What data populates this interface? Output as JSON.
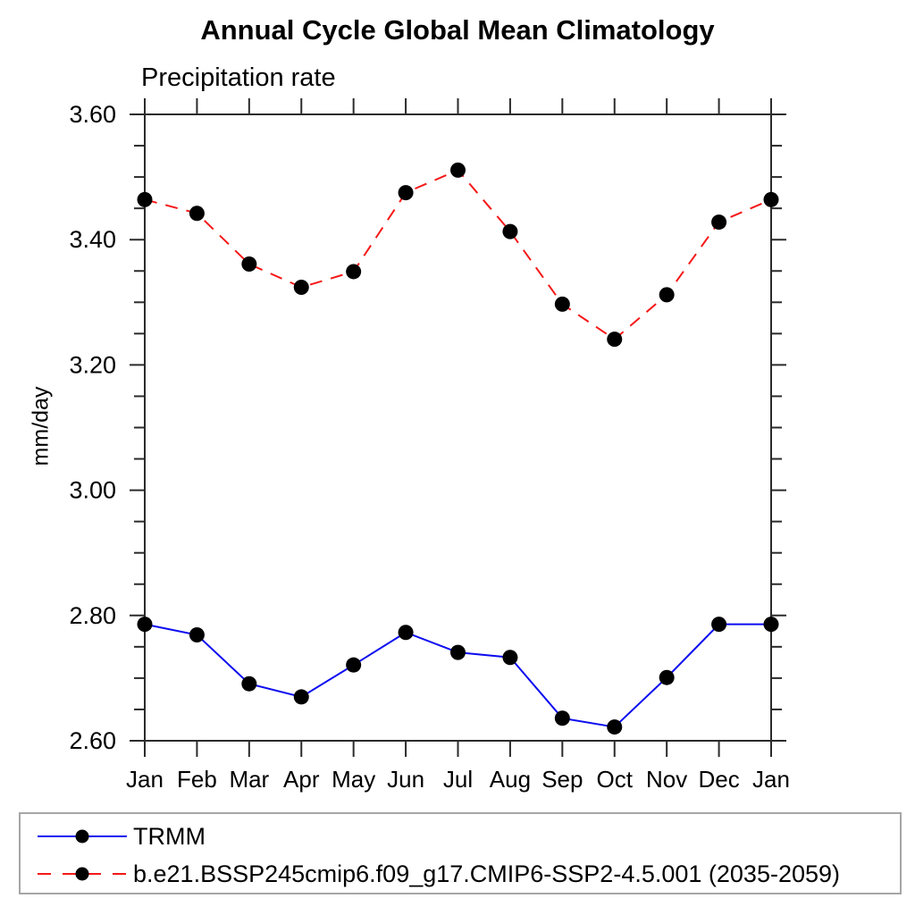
{
  "chart_data": {
    "type": "line",
    "title": "Annual Cycle Global Mean Climatology",
    "subtitle": "Precipitation rate",
    "xlabel": "",
    "ylabel": "mm/day",
    "categories": [
      "Jan",
      "Feb",
      "Mar",
      "Apr",
      "May",
      "Jun",
      "Jul",
      "Aug",
      "Sep",
      "Oct",
      "Nov",
      "Dec",
      "Jan"
    ],
    "ylim": [
      2.6,
      3.6
    ],
    "ytick_major_step": 0.2,
    "ytick_minor_step": 0.05,
    "ytick_labels": [
      "2.60",
      "2.80",
      "3.00",
      "3.20",
      "3.40",
      "3.60"
    ],
    "grid": false,
    "legend_position": "bottom-left-box",
    "marker": {
      "shape": "circle",
      "color": "#000000"
    },
    "axis_color": "#2b2b2b",
    "series": [
      {
        "name": "TRMM",
        "color": "#0b0bf0",
        "line_style": "solid",
        "values": [
          2.786,
          2.769,
          2.691,
          2.67,
          2.721,
          2.773,
          2.741,
          2.733,
          2.636,
          2.622,
          2.701,
          2.786,
          2.786
        ]
      },
      {
        "name": "b.e21.BSSP245cmip6.f09_g17.CMIP6-SSP2-4.5.001 (2035-2059)",
        "color": "#f51717",
        "line_style": "dashed",
        "values": [
          3.464,
          3.442,
          3.361,
          3.324,
          3.349,
          3.475,
          3.511,
          3.413,
          3.297,
          3.241,
          3.312,
          3.428,
          3.464
        ]
      }
    ]
  }
}
